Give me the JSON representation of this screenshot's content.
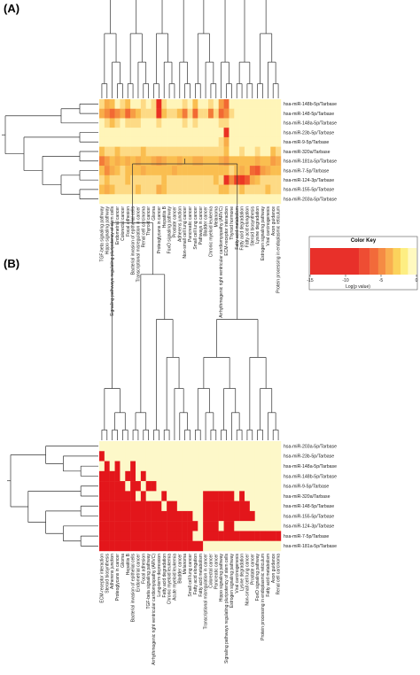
{
  "chart_data": [
    {
      "type": "heatmap",
      "panel_label": "(A)",
      "rows": [
        "hsa-miR-148b-5p/Tarbase",
        "hsa-miR-148-5p/Tarbase",
        "hsa-miR-148a-5p/Tarbase",
        "hsa-miR-23b-5p/Tarbase",
        "hsa-miR-9-5p/Tarbase",
        "hsa-miR-320a/Tarbase",
        "hsa-miR-181a-5p/Tarbase",
        "hsa-miR-7-5p/Tarbase",
        "hsa-miR-124-3p/Tarbase",
        "hsa-miR-155-5p/Tarbase",
        "hsa-miR-203a-5p/Tarbase"
      ],
      "columns": [
        "TGF-beta signaling pathway",
        "Hippo signaling pathway",
        "Signaling pathways regulating pluripotency of stem cells",
        "Endometrial cancer",
        "Colorectal cancer",
        "Focal adhesion",
        "Bacterial invasion of epithelial cells",
        "Transcriptional misregulation in cancer",
        "Renal cell carcinoma",
        "Thyroid cancer",
        "Glioma",
        "Proteoglycans in cancer",
        "Hepatitis B",
        "FoxO signaling pathway",
        "Prostate cancer",
        "Adherens junction",
        "Non-small cell lung cancer",
        "Pancreatic cancer",
        "Small cell lung cancer",
        "Pathways in cancer",
        "Bladder cancer",
        "Chronic myeloid leukemia",
        "Melanoma",
        "Arrhythmogenic right ventricular cardiomyopathy (ARVC)",
        "ECM-receptor interaction",
        "Thyroid hormone",
        "Fatty acid metabolism",
        "Fatty acid degradation",
        "Fatty acid elongation",
        "Steroid biosynthesis",
        "Lysine degradation",
        "Estrogen signaling pathway",
        "Viral carcinogenesis",
        "Axon guidance",
        "Protein processing in endoplasmic reticulum"
      ],
      "values": [
        [
          -2,
          -4,
          -3,
          -1,
          -2,
          -3,
          -1,
          -1,
          -2,
          -1,
          -2,
          -14,
          -2,
          -1,
          -1,
          -1,
          -2,
          -1,
          -3,
          -1,
          -1,
          -2,
          -1,
          -5,
          -8,
          -1,
          -1,
          -1,
          -1,
          -1,
          -1,
          -1,
          -1,
          -1,
          -1
        ],
        [
          -4,
          -6,
          -8,
          -6,
          -4,
          -8,
          -5,
          -3,
          -2,
          -2,
          -2,
          -13,
          -3,
          -2,
          -2,
          -3,
          -7,
          -2,
          -8,
          -2,
          -2,
          -7,
          -2,
          -8,
          -6,
          -2,
          -1,
          -1,
          -1,
          -1,
          -1,
          -1,
          -1,
          -1,
          -1
        ],
        [
          -1,
          -2,
          -3,
          -2,
          -1,
          -2,
          -2,
          -2,
          -1,
          -1,
          -1,
          -2,
          -1,
          -1,
          -1,
          -1,
          -2,
          -1,
          -2,
          -1,
          -1,
          -1,
          -1,
          -2,
          -2,
          -1,
          -1,
          -1,
          -1,
          -1,
          -1,
          -1,
          -1,
          -1,
          -1
        ],
        [
          -1,
          -1,
          -1,
          -1,
          -1,
          -1,
          -1,
          -1,
          -1,
          -1,
          -1,
          -1,
          -1,
          -1,
          -1,
          -1,
          -1,
          -1,
          -1,
          -1,
          -1,
          -1,
          -1,
          -1,
          -13,
          -1,
          -1,
          -1,
          -1,
          -1,
          -1,
          -1,
          -1,
          -1,
          -1
        ],
        [
          -1,
          -1,
          -1,
          -1,
          -1,
          -1,
          -1,
          -1,
          -1,
          -1,
          -1,
          -1,
          -1,
          -1,
          -1,
          -1,
          -1,
          -1,
          -1,
          -1,
          -1,
          -1,
          -1,
          -2,
          -4,
          -1,
          -1,
          -1,
          -1,
          -1,
          -1,
          -1,
          -1,
          -1,
          -1
        ],
        [
          -3,
          -2,
          -2,
          -3,
          -2,
          -2,
          -2,
          -2,
          -3,
          -2,
          -2,
          -2,
          -2,
          -2,
          -2,
          -2,
          -2,
          -2,
          -2,
          -2,
          -2,
          -2,
          -2,
          -2,
          -3,
          -1,
          -1,
          -2,
          -1,
          -1,
          -2,
          -1,
          -1,
          -3,
          -2
        ],
        [
          -7,
          -5,
          -3,
          -4,
          -3,
          -4,
          -3,
          -4,
          -3,
          -3,
          -4,
          -5,
          -4,
          -3,
          -3,
          -4,
          -3,
          -3,
          -4,
          -4,
          -3,
          -3,
          -3,
          -4,
          -5,
          -3,
          -3,
          -3,
          -3,
          -3,
          -4,
          -3,
          -3,
          -5,
          -4
        ],
        [
          -3,
          -6,
          -4,
          -3,
          -2,
          -3,
          -3,
          -3,
          -4,
          -3,
          -3,
          -3,
          -3,
          -3,
          -4,
          -3,
          -3,
          -3,
          -3,
          -3,
          -3,
          -3,
          -3,
          -3,
          -3,
          -2,
          -3,
          -4,
          -3,
          -8,
          -9,
          -5,
          -4,
          -3,
          -3
        ],
        [
          -2,
          -3,
          -2,
          -2,
          -2,
          -3,
          -2,
          -2,
          -2,
          -2,
          -2,
          -2,
          -3,
          -2,
          -2,
          -2,
          -2,
          -2,
          -2,
          -2,
          -2,
          -2,
          -3,
          -2,
          -13,
          -6,
          -11,
          -12,
          -9,
          -4,
          -3,
          -2,
          -2,
          -2,
          -2
        ],
        [
          -3,
          -4,
          -3,
          -2,
          -2,
          -2,
          -2,
          -3,
          -2,
          -2,
          -2,
          -4,
          -3,
          -2,
          -2,
          -2,
          -2,
          -2,
          -2,
          -2,
          -2,
          -2,
          -2,
          -3,
          -3,
          -2,
          -2,
          -3,
          -2,
          -2,
          -2,
          -2,
          -3,
          -2,
          -2
        ],
        [
          -1,
          -1,
          -1,
          -1,
          -1,
          -1,
          -1,
          -1,
          -1,
          -1,
          -1,
          -1,
          -1,
          -1,
          -1,
          -1,
          -1,
          -1,
          -1,
          -1,
          -1,
          -1,
          -1,
          -1,
          -1,
          -1,
          -1,
          -1,
          -1,
          -1,
          -1,
          -1,
          -1,
          -1,
          -1
        ]
      ]
    },
    {
      "type": "heatmap",
      "panel_label": "(B)",
      "rows": [
        "hsa-miR-203a-5p/Tarbase",
        "hsa-miR-23b-5p/Tarbase",
        "hsa-miR-148a-5p/Tarbase",
        "hsa-miR-148b-5p/Tarbase",
        "hsa-miR-9-5p/Tarbase",
        "hsa-miR-320a/Tarbase",
        "hsa-miR-148-5p/Tarbase",
        "hsa-miR-155-5p/Tarbase",
        "hsa-miR-124-3p/Tarbase",
        "hsa-miR-7-5p/Tarbase",
        "hsa-miR-181a-5p/Tarbase"
      ],
      "columns": [
        "ECM-receptor interaction",
        "Steroid biosynthesis",
        "Adherens junction",
        "Proteoglycans in cancer",
        "Glioma",
        "Hepatitis B",
        "Bacterial invasion of epithelial cells",
        "Endometrial cancer",
        "Focal adhesion",
        "TGF-beta signaling pathway",
        "Arrhythmogenic right ventricular cardiomyopathy (ARVC)",
        "Lung-term depression",
        "Fatty acid degradation",
        "Chronic myeloid leukemia",
        "Acute myeloid leukemia",
        "Bladder cancer",
        "Melanoma",
        "Small cell lung cancer",
        "Fatty acid elongation",
        "Fatty acid metabolism",
        "Transcriptional misregulation in cancer",
        "Colorectal cancer",
        "Pancreatic cancer",
        "Hippo signaling pathway",
        "Signaling pathways regulating pluripotency of stem cells",
        "Estrogen signaling pathway",
        "Viral carcinogenesis",
        "Lysine degradation",
        "Non-small cell lung cancer",
        "Prostate cancer",
        "FoxO signaling pathway",
        "Protein processing in endoplasmic reticulum",
        "Fatty acid metabolism",
        "Axon guidance",
        "Renal cell carcinoma"
      ],
      "values": [
        [
          0,
          0,
          0,
          0,
          0,
          0,
          0,
          0,
          0,
          0,
          0,
          0,
          0,
          0,
          0,
          0,
          0,
          0,
          0,
          0,
          0,
          0,
          0,
          0,
          0,
          0,
          0,
          0,
          0,
          0,
          0,
          0,
          0,
          0,
          0
        ],
        [
          1,
          0,
          0,
          0,
          0,
          0,
          0,
          0,
          0,
          0,
          0,
          0,
          0,
          0,
          0,
          0,
          0,
          0,
          0,
          0,
          0,
          0,
          0,
          0,
          0,
          0,
          0,
          0,
          0,
          0,
          0,
          0,
          0,
          0,
          0
        ],
        [
          0,
          1,
          0,
          1,
          0,
          0,
          1,
          0,
          0,
          0,
          0,
          0,
          0,
          0,
          0,
          0,
          0,
          0,
          0,
          0,
          0,
          0,
          0,
          0,
          0,
          0,
          0,
          0,
          0,
          0,
          0,
          0,
          0,
          0,
          0
        ],
        [
          1,
          1,
          1,
          1,
          0,
          1,
          1,
          0,
          1,
          0,
          0,
          0,
          0,
          0,
          0,
          0,
          0,
          0,
          0,
          0,
          0,
          0,
          0,
          0,
          0,
          0,
          0,
          0,
          0,
          0,
          0,
          0,
          0,
          0,
          0
        ],
        [
          1,
          1,
          1,
          1,
          1,
          0,
          1,
          1,
          0,
          1,
          1,
          0,
          0,
          0,
          0,
          0,
          0,
          0,
          0,
          0,
          0,
          0,
          0,
          0,
          0,
          0,
          0,
          0,
          0,
          0,
          0,
          0,
          0,
          0,
          0
        ],
        [
          1,
          1,
          1,
          1,
          1,
          1,
          1,
          0,
          1,
          0,
          0,
          0,
          1,
          0,
          0,
          0,
          0,
          0,
          0,
          0,
          1,
          1,
          1,
          1,
          1,
          1,
          0,
          1,
          0,
          0,
          0,
          0,
          0,
          0,
          0
        ],
        [
          1,
          1,
          1,
          1,
          1,
          1,
          1,
          1,
          1,
          1,
          1,
          1,
          0,
          1,
          1,
          0,
          0,
          0,
          0,
          0,
          1,
          1,
          1,
          1,
          1,
          1,
          1,
          1,
          1,
          0,
          0,
          0,
          0,
          0,
          0
        ],
        [
          1,
          1,
          1,
          1,
          1,
          1,
          1,
          1,
          1,
          1,
          1,
          1,
          1,
          1,
          1,
          1,
          1,
          1,
          0,
          0,
          1,
          1,
          1,
          1,
          1,
          1,
          1,
          1,
          1,
          1,
          0,
          0,
          0,
          0,
          0
        ],
        [
          1,
          1,
          1,
          1,
          1,
          1,
          1,
          1,
          1,
          1,
          1,
          1,
          1,
          1,
          1,
          1,
          1,
          1,
          1,
          0,
          1,
          1,
          1,
          0,
          1,
          1,
          0,
          0,
          0,
          0,
          0,
          0,
          0,
          0,
          0
        ],
        [
          1,
          1,
          1,
          1,
          1,
          1,
          1,
          1,
          1,
          1,
          1,
          1,
          1,
          1,
          1,
          1,
          1,
          1,
          0,
          0,
          1,
          1,
          1,
          1,
          1,
          1,
          1,
          1,
          1,
          1,
          1,
          1,
          1,
          1,
          1
        ],
        [
          1,
          1,
          1,
          1,
          1,
          1,
          1,
          1,
          1,
          1,
          1,
          1,
          1,
          1,
          1,
          1,
          1,
          1,
          1,
          1,
          0,
          0,
          0,
          0,
          0,
          0,
          0,
          0,
          0,
          0,
          0,
          0,
          0,
          0,
          0
        ]
      ]
    }
  ],
  "color_key": {
    "title": "Color Key",
    "ticks": [
      "-15",
      "-10",
      "-5",
      "0"
    ],
    "tick_values": [
      -15,
      -10,
      -5,
      0
    ],
    "xlabel": "Log(p value)",
    "colors": [
      "#e8302a",
      "#ee4d33",
      "#f26a3a",
      "#f58b44",
      "#f9ae4f",
      "#fbd25c",
      "#fdee82",
      "#fff9c0"
    ]
  },
  "colors": {
    "cell_high": "#e8241f",
    "cell_mid": "#f7a640",
    "cell_low": "#fff9c2",
    "b_present": "#e3161b",
    "b_absent": "#fdf8c9"
  }
}
